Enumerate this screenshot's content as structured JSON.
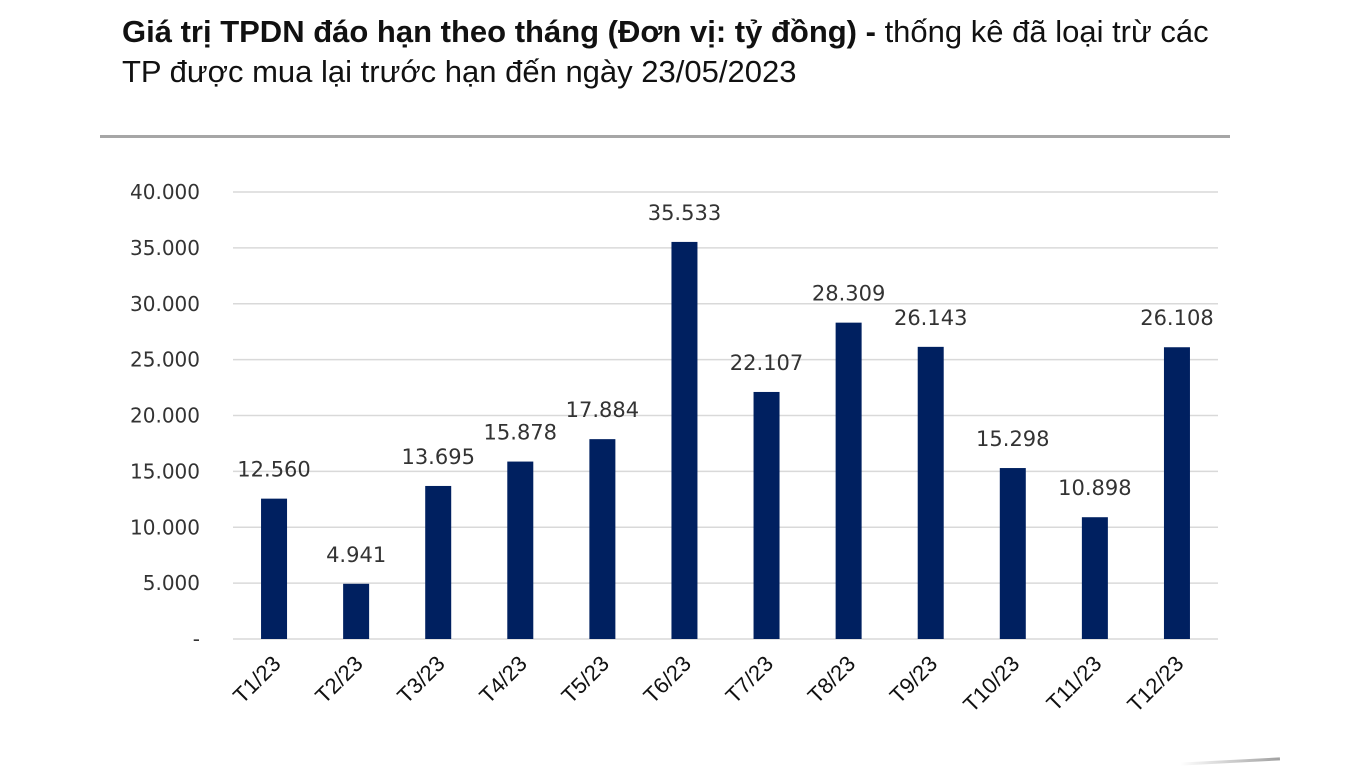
{
  "title": {
    "bold": "Giá trị TPDN đáo hạn theo tháng (Đơn vị: tỷ đồng) -",
    "rest": " thống kê đã loại trừ các TP được mua lại trước hạn đến ngày 23/05/2023"
  },
  "colors": {
    "bar": "#002060",
    "grid": "#d9d9d9"
  },
  "chart_data": {
    "type": "bar",
    "categories": [
      "T1/23",
      "T2/23",
      "T3/23",
      "T4/23",
      "T5/23",
      "T6/23",
      "T7/23",
      "T8/23",
      "T9/23",
      "T10/23",
      "T11/23",
      "T12/23"
    ],
    "values": [
      12560,
      4941,
      13695,
      15878,
      17884,
      35533,
      22107,
      28309,
      26143,
      15298,
      10898,
      26108
    ],
    "data_labels": [
      "12.560",
      "4.941",
      "13.695",
      "15.878",
      "17.884",
      "35.533",
      "22.107",
      "28.309",
      "26.143",
      "15.298",
      "10.898",
      "26.108"
    ],
    "ylim": [
      0,
      40000
    ],
    "yticks": [
      0,
      5000,
      10000,
      15000,
      20000,
      25000,
      30000,
      35000,
      40000
    ],
    "ytick_labels": [
      "-",
      "5.000",
      "10.000",
      "15.000",
      "20.000",
      "25.000",
      "30.000",
      "35.000",
      "40.000"
    ],
    "grid": true,
    "xlabel": "",
    "ylabel": ""
  }
}
